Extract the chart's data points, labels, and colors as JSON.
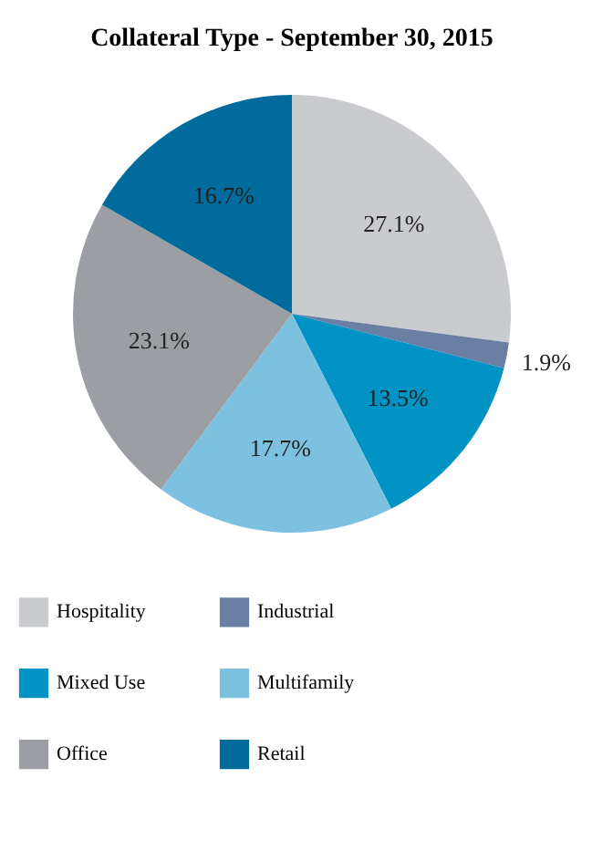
{
  "chart_data": {
    "type": "pie",
    "title": "Collateral Type - September 30, 2015",
    "categories": [
      "Hospitality",
      "Industrial",
      "Mixed Use",
      "Multifamily",
      "Office",
      "Retail"
    ],
    "values": [
      27.1,
      1.9,
      13.5,
      17.7,
      23.1,
      16.7
    ],
    "value_labels": [
      "27.1%",
      "1.9%",
      "13.5%",
      "17.7%",
      "23.1%",
      "16.7%"
    ],
    "colors": [
      "#c9cbce",
      "#6b7ea3",
      "#0093c4",
      "#7dc1e1",
      "#9b9fa4",
      "#006b9c"
    ],
    "legend": "bottom"
  }
}
